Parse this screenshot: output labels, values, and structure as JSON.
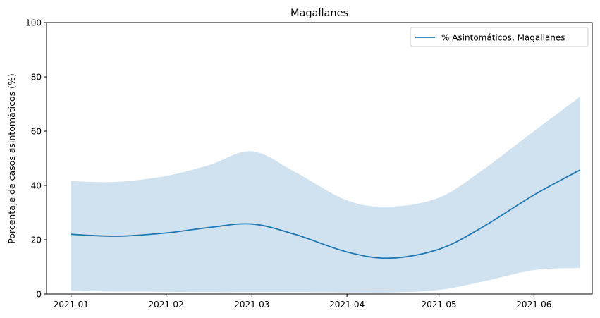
{
  "chart_data": {
    "type": "line",
    "title": "Magallanes",
    "xlabel": "",
    "ylabel": "Porcentaje de casos asintomáticos (%)",
    "ylim": [
      0,
      100
    ],
    "xlim": [
      "2020-12-24",
      "2021-06-20"
    ],
    "yticks": [
      0,
      20,
      40,
      60,
      80,
      100
    ],
    "xticks": [
      "2021-01-01",
      "2021-02-01",
      "2021-03-01",
      "2021-04-01",
      "2021-05-01",
      "2021-06-01"
    ],
    "xtick_labels": [
      "2021-01",
      "2021-02",
      "2021-03",
      "2021-04",
      "2021-05",
      "2021-06"
    ],
    "grid": false,
    "legend_position": "top-right",
    "series": [
      {
        "name": "% Asintomáticos, Magallanes",
        "color": "#1f77b4",
        "band_color": "#d0e2f0",
        "x": [
          "2021-01-01",
          "2021-01-16",
          "2021-02-01",
          "2021-02-15",
          "2021-03-01",
          "2021-03-15",
          "2021-04-01",
          "2021-04-15",
          "2021-05-01",
          "2021-05-15",
          "2021-06-01",
          "2021-06-16"
        ],
        "y": [
          22.0,
          21.3,
          22.5,
          24.5,
          25.8,
          22.0,
          15.5,
          13.2,
          16.5,
          24.5,
          36.5,
          45.7
        ],
        "lower": [
          1.2,
          0.9,
          0.8,
          0.7,
          0.7,
          0.7,
          0.6,
          0.6,
          1.5,
          4.5,
          8.8,
          9.6
        ],
        "upper": [
          41.6,
          41.3,
          43.5,
          47.5,
          52.6,
          45.0,
          34.5,
          32.2,
          35.5,
          45.5,
          60.0,
          72.7
        ]
      }
    ]
  }
}
